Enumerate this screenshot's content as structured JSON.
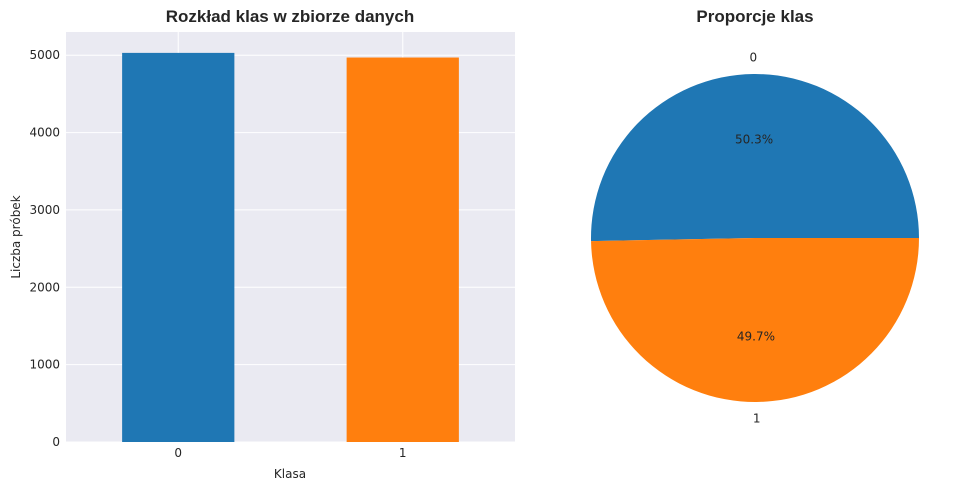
{
  "chart_data": [
    {
      "type": "bar",
      "title": "Rozkład klas w zbiorze danych",
      "xlabel": "Klasa",
      "ylabel": "Liczba próbek",
      "categories": [
        "0",
        "1"
      ],
      "values": [
        5030,
        4970
      ],
      "colors": [
        "#1f77b4",
        "#ff7f0e"
      ],
      "ylim": [
        0,
        5300
      ],
      "yticks": [
        0,
        1000,
        2000,
        3000,
        4000,
        5000
      ],
      "grid": true,
      "background": "#eaeaf2"
    },
    {
      "type": "pie",
      "title": "Proporcje klas",
      "labels": [
        "0",
        "1"
      ],
      "values": [
        50.3,
        49.7
      ],
      "percent_labels": [
        "50.3%",
        "49.7%"
      ],
      "colors": [
        "#1f77b4",
        "#ff7f0e"
      ]
    }
  ]
}
